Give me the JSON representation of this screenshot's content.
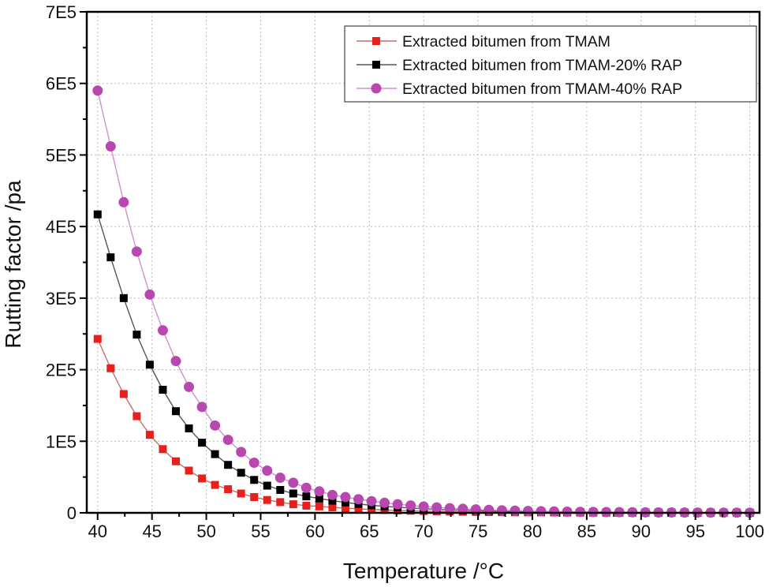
{
  "chart_data": {
    "type": "line",
    "title": "",
    "xlabel": "Temperature /°C",
    "ylabel": "Rutting factor /pa",
    "xlim": [
      39,
      100.9
    ],
    "ylim": [
      0,
      700000
    ],
    "grid": true,
    "legend_position": "top-right",
    "x_ticks": [
      40,
      45,
      50,
      55,
      60,
      65,
      70,
      75,
      80,
      85,
      90,
      95,
      100
    ],
    "x_tick_labels": [
      "40",
      "45",
      "50",
      "55",
      "60",
      "65",
      "70",
      "75",
      "80",
      "85",
      "90",
      "95",
      "100"
    ],
    "y_ticks": [
      0,
      100000,
      200000,
      300000,
      400000,
      500000,
      600000,
      700000
    ],
    "y_tick_labels": [
      "0",
      "1E5",
      "2E5",
      "3E5",
      "4E5",
      "5E5",
      "6E5",
      "7E5"
    ],
    "x": [
      40,
      41.2,
      42.4,
      43.6,
      44.8,
      46,
      47.2,
      48.4,
      49.6,
      50.8,
      52,
      53.2,
      54.4,
      55.6,
      56.8,
      58,
      59.2,
      60.4,
      61.6,
      62.8,
      64,
      65.2,
      66.4,
      67.6,
      68.8,
      70,
      71.2,
      72.4,
      73.6,
      74.8,
      76,
      77.2,
      78.4,
      79.6,
      80.8,
      82,
      83.2,
      84.4,
      85.6,
      86.8,
      88,
      89.2,
      90.4,
      91.6,
      92.8,
      94,
      95.2,
      96.4,
      97.6,
      98.8,
      100
    ],
    "series": [
      {
        "name": "Extracted bitumen from TMAM",
        "color": "#e8201c",
        "line_color": "#c0706a",
        "marker": "square",
        "values": [
          243000,
          202000,
          166000,
          135000,
          109000,
          89000,
          72000,
          59000,
          48000,
          39000,
          33000,
          27000,
          22000,
          18000,
          15000,
          12000,
          10000,
          9000,
          7600,
          6500,
          5500,
          4700,
          4000,
          3400,
          2900,
          2500,
          2100,
          1800,
          1500,
          1300,
          1100,
          900,
          800,
          700,
          600,
          500,
          400,
          350,
          300,
          260,
          220,
          190,
          160,
          140,
          120,
          100,
          90,
          80,
          70,
          60,
          50
        ]
      },
      {
        "name": "Extracted bitumen from TMAM-20% RAP",
        "color": "#000000",
        "line_color": "#555555",
        "marker": "square",
        "values": [
          417000,
          357000,
          300000,
          249000,
          207000,
          172000,
          142000,
          118000,
          98000,
          82000,
          67000,
          56000,
          46000,
          38000,
          32000,
          27000,
          23000,
          20000,
          17000,
          14500,
          12400,
          10600,
          9100,
          7800,
          6700,
          5700,
          4900,
          4200,
          3600,
          3100,
          2700,
          2300,
          2000,
          1700,
          1450,
          1250,
          1070,
          920,
          790,
          680,
          580,
          500,
          430,
          370,
          320,
          270,
          230,
          200,
          170,
          150,
          130
        ]
      },
      {
        "name": "Extracted bitumen from TMAM-40% RAP",
        "color": "#b848b0",
        "line_color": "#d090d0",
        "marker": "circle",
        "values": [
          590000,
          512000,
          434000,
          365000,
          305000,
          255000,
          212000,
          176000,
          148000,
          122000,
          102000,
          85000,
          70000,
          59000,
          49000,
          42000,
          35000,
          30000,
          25000,
          22000,
          19000,
          16300,
          14000,
          12000,
          10300,
          8800,
          7600,
          6500,
          5600,
          4800,
          4100,
          3500,
          3000,
          2600,
          2200,
          1900,
          1650,
          1400,
          1200,
          1050,
          900,
          770,
          660,
          570,
          490,
          420,
          360,
          310,
          270,
          230,
          200
        ]
      }
    ]
  }
}
